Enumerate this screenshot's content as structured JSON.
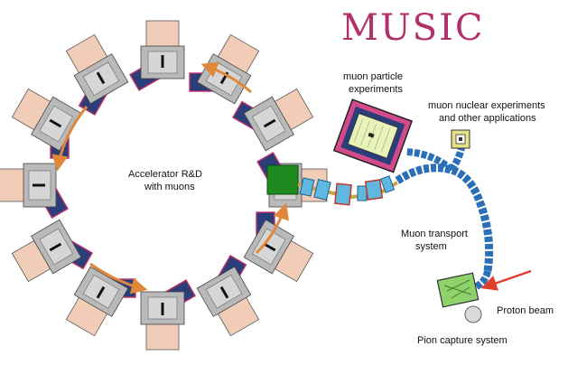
{
  "title": "MUSIC",
  "labels": {
    "ring_center_line1": "Accelerator R&D",
    "ring_center_line2": "with muons",
    "muon_particle_line1": "muon particle",
    "muon_particle_line2": "experiments",
    "muon_nuclear_line1": "muon nuclear experiments",
    "muon_nuclear_line2": "and other applications",
    "transport_line1": "Muon transport",
    "transport_line2": "system",
    "proton_beam": "Proton beam",
    "pion_capture": "Pion capture system"
  },
  "colors": {
    "title": "#b0306a",
    "magnet_gray": "#b9b9b9",
    "coil_blue": "#2c3e7a",
    "peach": "#f1cdb8",
    "arrow_orange": "#e0883a",
    "cavity_green": "#1f8a1f",
    "transport_blue": "#2a6fb8",
    "proton_red": "#e0402a",
    "nuclear_yellow": "#e6e08a"
  }
}
